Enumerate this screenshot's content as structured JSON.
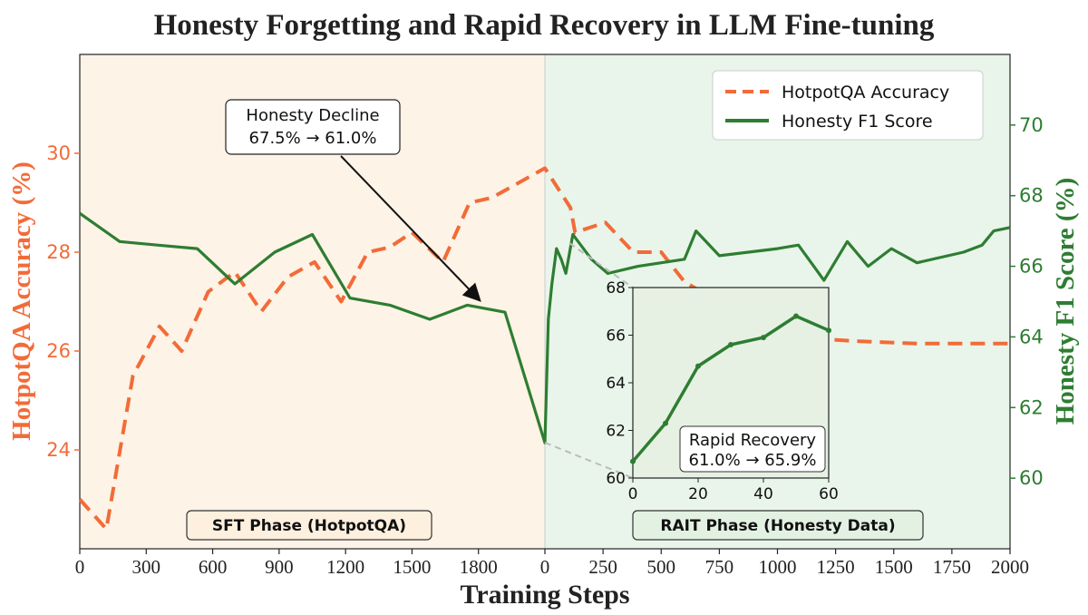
{
  "chart_data": {
    "type": "line",
    "title": "Honesty Forgetting and Rapid Recovery in LLM Fine-tuning",
    "xlabel": "Training Steps",
    "ylabel_left": "HotpotQA Accuracy (%)",
    "ylabel_right": "Honesty F1 Score (%)",
    "colors": {
      "accuracy": "#f26b38",
      "honesty": "#2e7d32",
      "sft_bg": "#fdf3e6",
      "rait_bg": "#e9f5ea"
    },
    "phases": [
      {
        "name": "SFT Phase (HotpotQA)",
        "x_range": [
          0,
          2100
        ],
        "x_ticks": [
          "0",
          "300",
          "600",
          "900",
          "1200",
          "1500",
          "1800"
        ]
      },
      {
        "name": "RAIT Phase (Honesty Data)",
        "x_range": [
          0,
          2000
        ],
        "x_ticks": [
          "0",
          "250",
          "500",
          "750",
          "1000",
          "1250",
          "1500",
          "1750",
          "2000"
        ]
      }
    ],
    "ylim_left": [
      22,
      32
    ],
    "yticks_left": [
      "24",
      "26",
      "28",
      "30"
    ],
    "ylim_right": [
      58,
      72
    ],
    "yticks_right": [
      "60",
      "62",
      "64",
      "66",
      "68",
      "70"
    ],
    "legend": {
      "position": "top-right",
      "entries": [
        "HotpotQA Accuracy",
        "Honesty F1 Score"
      ]
    },
    "series": [
      {
        "name": "HotpotQA Accuracy",
        "axis": "left",
        "style": "dashed",
        "sft": [
          [
            0,
            23.0
          ],
          [
            120,
            22.4
          ],
          [
            240,
            25.5
          ],
          [
            360,
            26.5
          ],
          [
            460,
            26.0
          ],
          [
            580,
            27.2
          ],
          [
            700,
            27.6
          ],
          [
            820,
            26.8
          ],
          [
            940,
            27.5
          ],
          [
            1060,
            27.8
          ],
          [
            1180,
            27.0
          ],
          [
            1300,
            28.0
          ],
          [
            1400,
            28.1
          ],
          [
            1500,
            28.4
          ],
          [
            1640,
            27.8
          ],
          [
            1760,
            29.0
          ],
          [
            1860,
            29.1
          ],
          [
            2100,
            29.7
          ]
        ],
        "rait": [
          [
            0,
            29.7
          ],
          [
            110,
            28.9
          ],
          [
            130,
            28.4
          ],
          [
            260,
            28.6
          ],
          [
            380,
            28.0
          ],
          [
            500,
            28.0
          ],
          [
            600,
            27.4
          ],
          [
            1000,
            26.3
          ],
          [
            1340,
            26.2
          ],
          [
            1600,
            26.15
          ],
          [
            2000,
            26.15
          ]
        ]
      },
      {
        "name": "Honesty F1 Score",
        "axis": "right",
        "style": "solid",
        "sft": [
          [
            0,
            67.5
          ],
          [
            180,
            66.7
          ],
          [
            350,
            66.6
          ],
          [
            530,
            66.5
          ],
          [
            700,
            65.5
          ],
          [
            880,
            66.4
          ],
          [
            1050,
            66.9
          ],
          [
            1220,
            65.1
          ],
          [
            1400,
            64.9
          ],
          [
            1580,
            64.5
          ],
          [
            1750,
            64.9
          ],
          [
            1920,
            64.7
          ],
          [
            2100,
            61.0
          ]
        ],
        "rait": [
          [
            0,
            61.0
          ],
          [
            15,
            64.5
          ],
          [
            30,
            65.5
          ],
          [
            50,
            66.5
          ],
          [
            70,
            66.2
          ],
          [
            90,
            65.8
          ],
          [
            120,
            66.9
          ],
          [
            200,
            66.2
          ],
          [
            270,
            65.8
          ],
          [
            400,
            66.0
          ],
          [
            600,
            66.2
          ],
          [
            650,
            67.0
          ],
          [
            750,
            66.3
          ],
          [
            1000,
            66.5
          ],
          [
            1090,
            66.6
          ],
          [
            1200,
            65.6
          ],
          [
            1300,
            66.7
          ],
          [
            1390,
            66.0
          ],
          [
            1490,
            66.5
          ],
          [
            1600,
            66.1
          ],
          [
            1800,
            66.4
          ],
          [
            1880,
            66.6
          ],
          [
            1930,
            67.0
          ],
          [
            2000,
            67.1
          ]
        ]
      }
    ],
    "inset": {
      "xlim": [
        0,
        60
      ],
      "ylim": [
        60,
        68
      ],
      "xticks": [
        "0",
        "20",
        "40",
        "60"
      ],
      "yticks": [
        "60",
        "62",
        "64",
        "66",
        "68"
      ],
      "series": [
        [
          0,
          60.7
        ],
        [
          10,
          62.3
        ],
        [
          20,
          64.7
        ],
        [
          30,
          65.6
        ],
        [
          40,
          65.9
        ],
        [
          50,
          66.8
        ],
        [
          60,
          66.2
        ]
      ]
    },
    "annotations": {
      "decline_line1": "Honesty Decline",
      "decline_line2": "67.5% → 61.0%",
      "recovery_line1": "Rapid Recovery",
      "recovery_line2": "61.0% → 65.9%"
    }
  }
}
